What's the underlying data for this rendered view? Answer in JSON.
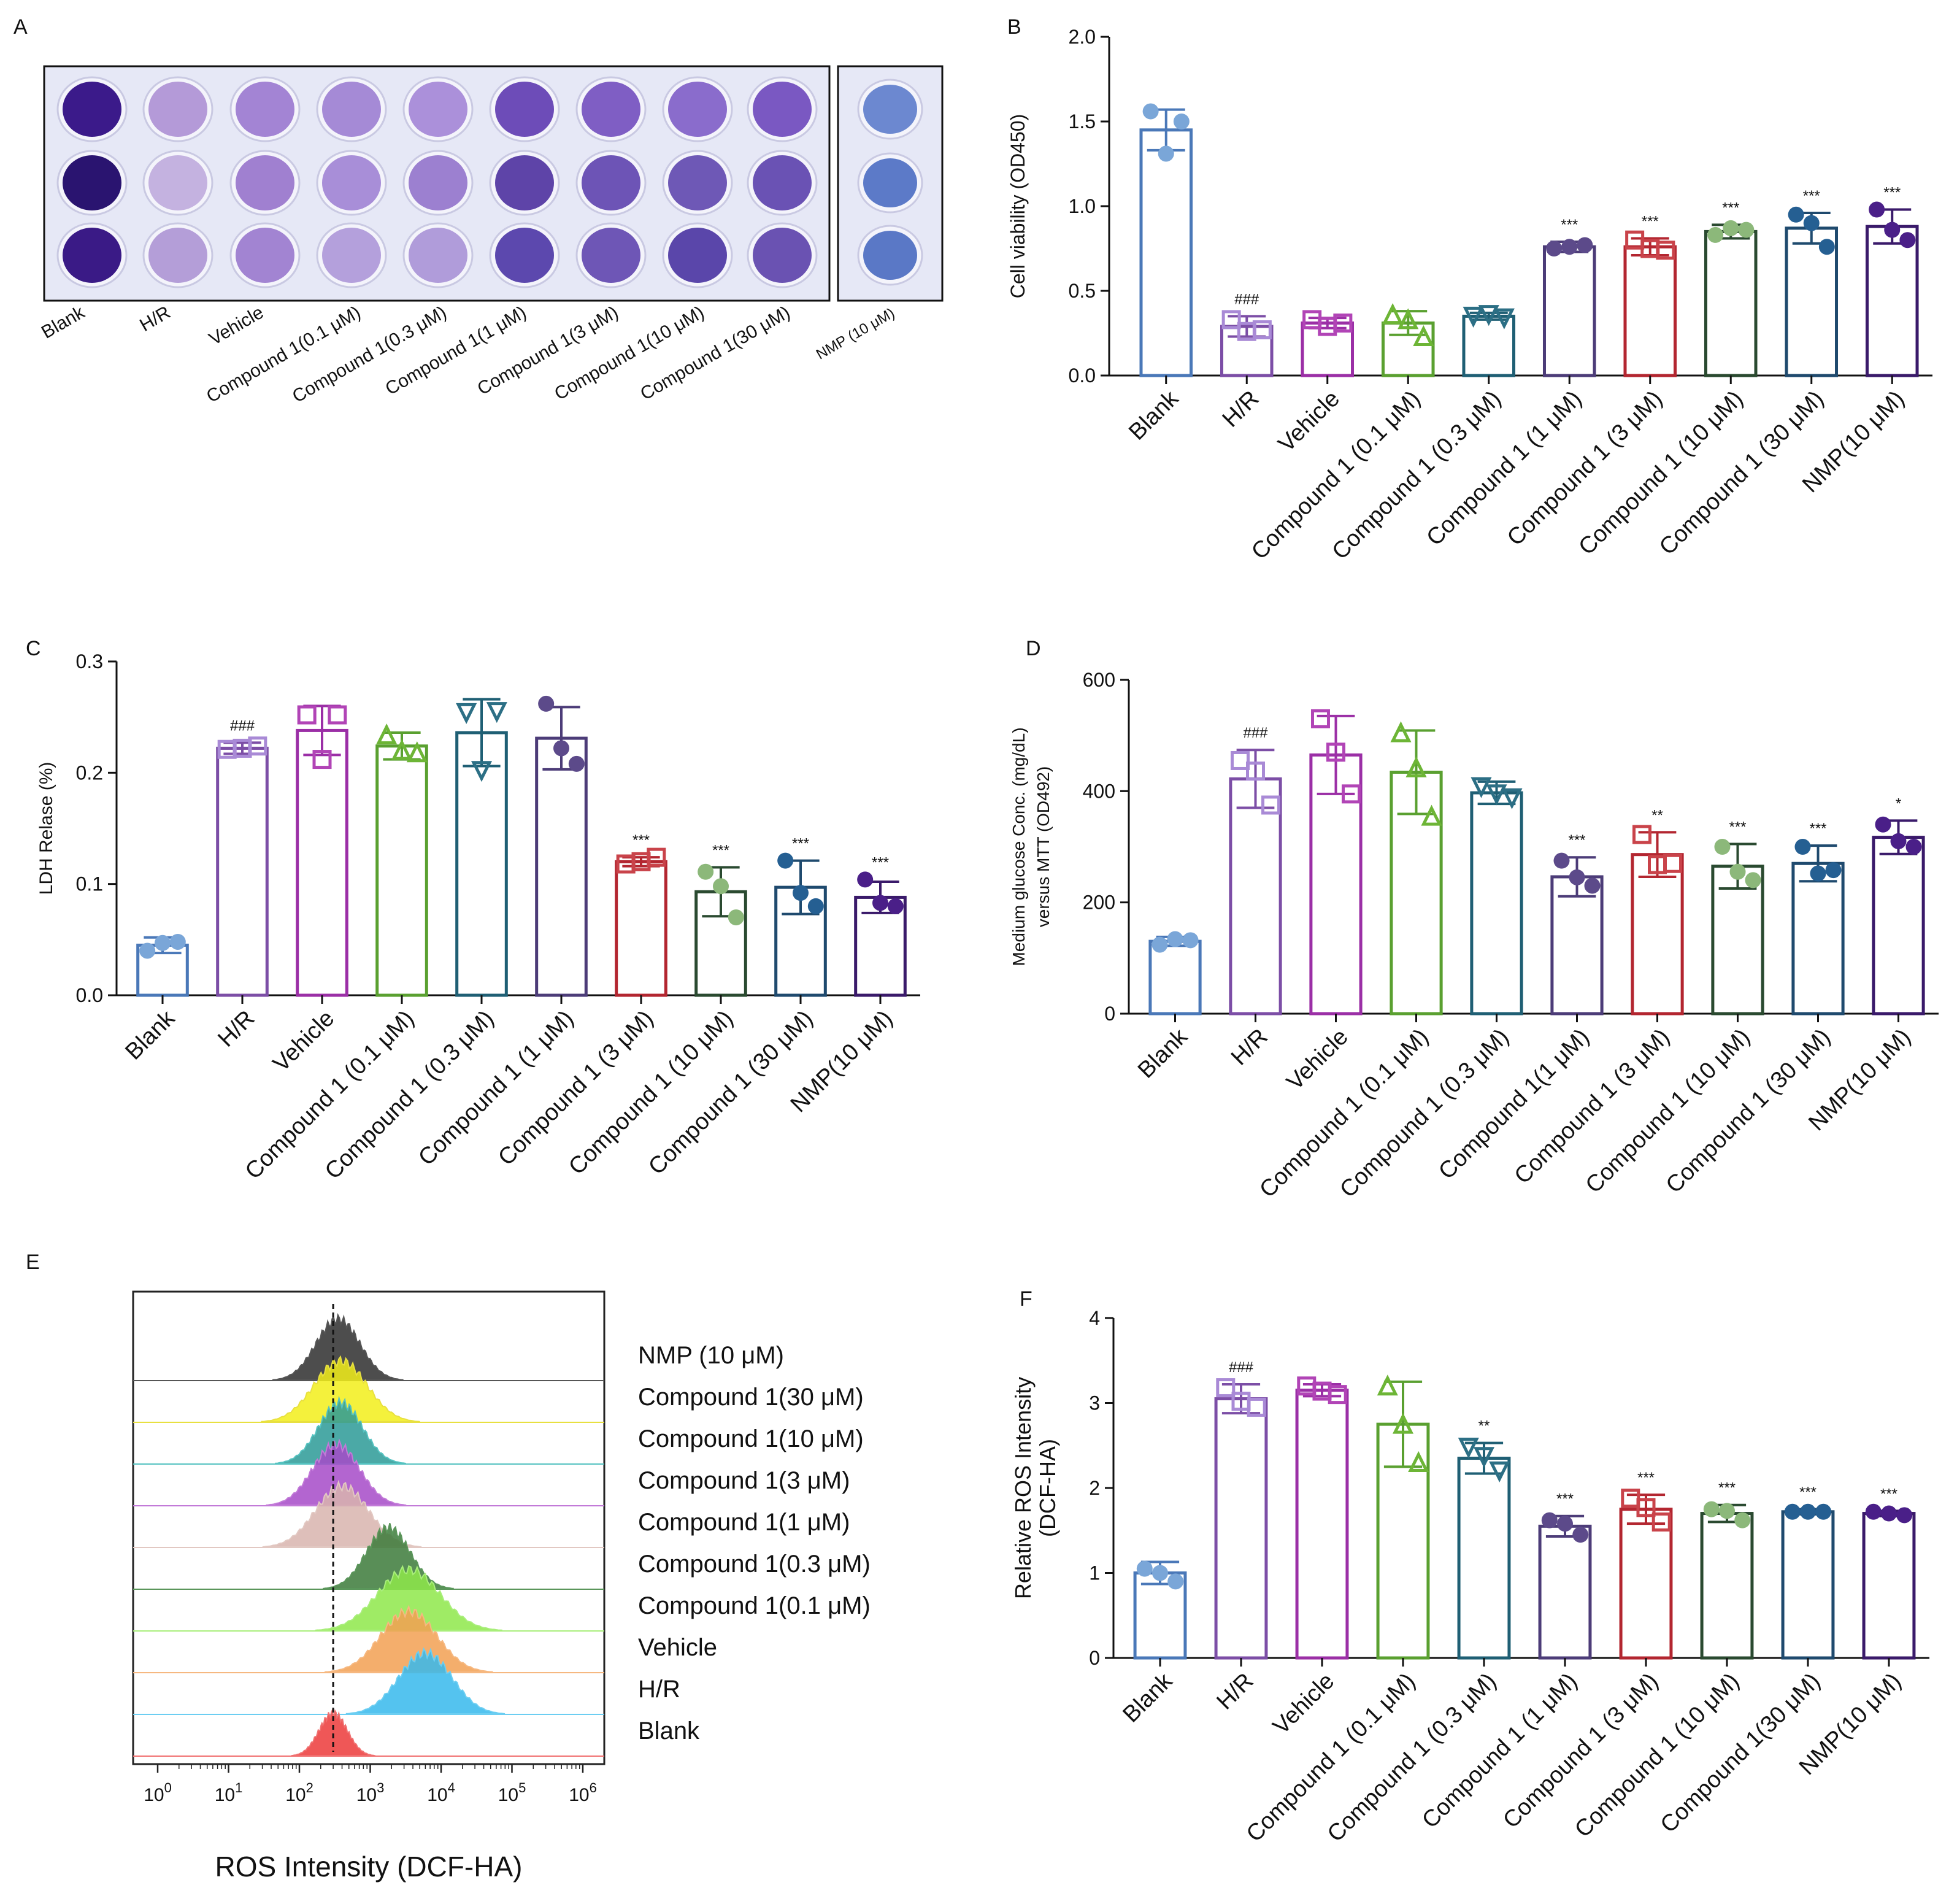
{
  "figure": {
    "panel_letters": [
      "A",
      "B",
      "C",
      "D",
      "E",
      "F"
    ],
    "colors": {
      "Blank": "#4a78b8",
      "H/R": "#7c4ea6",
      "Vehicle": "#9b2fa6",
      "Compound 1 (0.1 μM)": "#5aa030",
      "Compound 1 (0.3 μM)": "#1f5f74",
      "Compound 1 (1 μM)": "#4c3c78",
      "Compound 1 (3 μM)": "#b32630",
      "Compound 1 (10 μM)": "#2a4a30",
      "Compound 1 (30 μM)": "#1f4a6e",
      "NMP(10 μM)": "#3a1a6a"
    },
    "marker_colors": {
      "Blank": "#7aa6d8",
      "H/R": "#a98ad6",
      "Vehicle": "#b144b6",
      "Compound 1 (0.1 μM)": "#6db536",
      "Compound 1 (0.3 μM)": "#2c6f85",
      "Compound 1 (1 μM)": "#5c4a8a",
      "Compound 1 (3 μM)": "#c9434a",
      "Compound 1 (10 μM)": "#8cb87a",
      "Compound 1 (30 μM)": "#255f92",
      "NMP(10 μM)": "#4a1f88"
    }
  },
  "chart_data": [
    {
      "panel": "A",
      "type": "image",
      "description_labels": [
        "Blank",
        "H/R",
        "Vehicle",
        "Compound 1(0.1 μM)",
        "Compound 1(0.3 μM)",
        "Compound 1(1 μM)",
        "Compound 1(3 μM)",
        "Compound 1(10 μM)",
        "Compound 1(30 μM)",
        "NMP (10 μM)"
      ],
      "well_colors": [
        [
          "#3b1a8a",
          "#b49ad8",
          "#a384d4",
          "#a58ad6",
          "#ab90da",
          "#6d4cb8",
          "#7f5ec4",
          "#8a6ccc",
          "#7a58c2",
          "#6c88d0"
        ],
        [
          "#2a1470",
          "#c4b2e0",
          "#a080d0",
          "#a88ed8",
          "#9c80d0",
          "#5e44a8",
          "#6d54b6",
          "#6e58b6",
          "#6a52b4",
          "#5c7ac8"
        ],
        [
          "#3a1a86",
          "#b49ed8",
          "#a284d2",
          "#b4a0dc",
          "#b09cda",
          "#5c48ae",
          "#6e56b6",
          "#5a46aa",
          "#6a52b2",
          "#5a78c6"
        ]
      ]
    },
    {
      "panel": "B",
      "type": "bar",
      "ylabel": "Cell viability (OD450)",
      "ylim": [
        0,
        2.0
      ],
      "yticks": [
        "0.0",
        "0.5",
        "1.0",
        "1.5",
        "2.0"
      ],
      "categories": [
        "Blank",
        "H/R",
        "Vehicle",
        "Compound 1 (0.1 μM)",
        "Compound 1 (0.3 μM)",
        "Compound 1  (1 μM)",
        "Compound 1  (3 μM)",
        "Compound 1 (10 μM)",
        "Compound 1  (30 μM)",
        "NMP(10 μM)"
      ],
      "values": [
        1.45,
        0.29,
        0.31,
        0.31,
        0.35,
        0.76,
        0.76,
        0.85,
        0.87,
        0.88
      ],
      "errors": [
        0.12,
        0.06,
        0.03,
        0.07,
        0.02,
        0.03,
        0.05,
        0.04,
        0.09,
        0.1
      ],
      "points": [
        [
          1.56,
          1.5,
          1.31
        ],
        [
          0.33,
          0.27,
          0.26
        ],
        [
          0.33,
          0.31,
          0.29
        ],
        [
          0.36,
          0.23,
          0.33
        ],
        [
          0.35,
          0.34,
          0.36
        ],
        [
          0.75,
          0.77,
          0.76
        ],
        [
          0.8,
          0.74,
          0.75
        ],
        [
          0.83,
          0.86,
          0.87
        ],
        [
          0.95,
          0.76,
          0.9
        ],
        [
          0.98,
          0.8,
          0.86
        ]
      ],
      "markers": [
        "circle",
        "square",
        "square",
        "triangle",
        "triangle-down",
        "circle",
        "square",
        "circle",
        "circle",
        "circle"
      ],
      "annotations": [
        "",
        "###",
        "",
        "",
        "",
        "***",
        "***",
        "***",
        "***",
        "***"
      ]
    },
    {
      "panel": "C",
      "type": "bar",
      "ylabel": "LDH Relase (%)",
      "ylim": [
        0,
        0.3
      ],
      "yticks": [
        "0.0",
        "0.1",
        "0.2",
        "0.3"
      ],
      "categories": [
        "Blank",
        "H/R",
        "Vehicle",
        "Compound 1 (0.1 μM)",
        "Compound 1 (0.3 μM)",
        "Compound 1 (1 μM)",
        "Compound 1 (3 μM)",
        "Compound 1 (10 μM)",
        "Compound 1 (30 μM)",
        "NMP(10 μM)"
      ],
      "values": [
        0.045,
        0.222,
        0.238,
        0.224,
        0.236,
        0.231,
        0.12,
        0.093,
        0.097,
        0.088
      ],
      "errors": [
        0.007,
        0.005,
        0.022,
        0.012,
        0.03,
        0.028,
        0.004,
        0.022,
        0.024,
        0.014
      ],
      "points": [
        [
          0.04,
          0.048,
          0.047
        ],
        [
          0.221,
          0.224,
          0.222
        ],
        [
          0.252,
          0.252,
          0.212
        ],
        [
          0.234,
          0.218,
          0.22
        ],
        [
          0.254,
          0.255,
          0.202
        ],
        [
          0.262,
          0.208,
          0.222
        ],
        [
          0.118,
          0.124,
          0.12
        ],
        [
          0.111,
          0.07,
          0.098
        ],
        [
          0.121,
          0.08,
          0.092
        ],
        [
          0.104,
          0.08,
          0.083
        ]
      ],
      "markers": [
        "circle",
        "square",
        "square",
        "triangle",
        "triangle-down",
        "circle",
        "square",
        "circle",
        "circle",
        "circle"
      ],
      "annotations": [
        "",
        "###",
        "",
        "",
        "",
        "",
        "***",
        "***",
        "***",
        "***"
      ]
    },
    {
      "panel": "D",
      "type": "bar",
      "ylabel": "Medium glucose Conc. (mg/dL)",
      "ylabel2": "versus MTT (OD492)",
      "ylim": [
        0,
        600
      ],
      "yticks": [
        "0",
        "200",
        "400",
        "600"
      ],
      "categories": [
        "Blank",
        "H/R",
        "Vehicle",
        "Compound 1 (0.1 μM)",
        "Compound 1 (0.3 μM)",
        "Compound 1(1 μM)",
        "Compound 1 (3 μM)",
        "Compound 1 (10 μM)",
        "Compound 1 (30 μM)",
        "NMP(10 μM)"
      ],
      "values": [
        130,
        422,
        465,
        434,
        397,
        246,
        286,
        265,
        270,
        317
      ],
      "errors": [
        8,
        52,
        70,
        75,
        20,
        35,
        40,
        40,
        32,
        30
      ],
      "points": [
        [
          124,
          132,
          134
        ],
        [
          455,
          375,
          436
        ],
        [
          530,
          395,
          470
        ],
        [
          505,
          355,
          442
        ],
        [
          408,
          388,
          395
        ],
        [
          275,
          230,
          245
        ],
        [
          322,
          270,
          268
        ],
        [
          300,
          240,
          255
        ],
        [
          300,
          258,
          252
        ],
        [
          340,
          300,
          310
        ]
      ],
      "markers": [
        "circle",
        "square",
        "square",
        "triangle",
        "triangle-down",
        "circle",
        "square",
        "circle",
        "circle",
        "circle"
      ],
      "annotations": [
        "",
        "###",
        "",
        "",
        "",
        "***",
        "**",
        "***",
        "***",
        "*"
      ]
    },
    {
      "panel": "E",
      "type": "histogram",
      "xlabel": "ROS Intensity (DCF-HA)",
      "xscale": "log",
      "xlim": [
        1,
        1000000
      ],
      "xtick_bases": [
        "10",
        "10",
        "10",
        "10",
        "10",
        "10",
        "10"
      ],
      "xtick_exponents": [
        "0",
        "1",
        "2",
        "3",
        "4",
        "5",
        "6"
      ],
      "reference_line_x": 300,
      "series": [
        {
          "name": "NMP (10 μM)",
          "peak_x": 350,
          "spread": 0.14,
          "fill": "#2e2e2e",
          "line": "#555555"
        },
        {
          "name": "Compound 1(30 μM)",
          "peak_x": 380,
          "spread": 0.17,
          "fill": "#f2ee1a",
          "line": "#e8e040"
        },
        {
          "name": "Compound 1(10 μM)",
          "peak_x": 380,
          "spread": 0.14,
          "fill": "#2c9a96",
          "line": "#54c2c0"
        },
        {
          "name": "Compound 1(3 μM)",
          "peak_x": 330,
          "spread": 0.15,
          "fill": "#a64ac8",
          "line": "#c27ad8"
        },
        {
          "name": "Compound 1(1 μM)",
          "peak_x": 400,
          "spread": 0.17,
          "fill": "#d8b4ae",
          "line": "#e2c8c2"
        },
        {
          "name": "Compound 1(0.3 μM)",
          "peak_x": 1800,
          "spread": 0.14,
          "fill": "#3c7a3a",
          "line": "#5a965a"
        },
        {
          "name": "Compound 1(0.1 μM)",
          "peak_x": 3500,
          "spread": 0.2,
          "fill": "#8ee84a",
          "line": "#a8ee7a"
        },
        {
          "name": "Vehicle",
          "peak_x": 3500,
          "spread": 0.18,
          "fill": "#f2a052",
          "line": "#f6b880"
        },
        {
          "name": "H/R",
          "peak_x": 6000,
          "spread": 0.17,
          "fill": "#36b8ec",
          "line": "#6ccef2"
        },
        {
          "name": "Blank",
          "peak_x": 300,
          "spread": 0.09,
          "fill": "#ec3a3a",
          "line": "#f07070"
        }
      ]
    },
    {
      "panel": "F",
      "type": "bar",
      "ylabel": "Relative ROS Intensity",
      "ylabel2": "(DCF-HA)",
      "ylim": [
        0,
        4
      ],
      "yticks": [
        "0",
        "1",
        "2",
        "3",
        "4"
      ],
      "categories": [
        "Blank",
        "H/R",
        "Vehicle",
        "Compound 1 (0.1 μM)",
        "Compound 1 (0.3 μM)",
        "Compound 1 (1 μM)",
        "Compound 1 (3 μM)",
        "Compound 1 (10 μM)",
        "Compound 1(30 μM)",
        "NMP(10 μM)"
      ],
      "values": [
        1.0,
        3.05,
        3.15,
        2.75,
        2.35,
        1.55,
        1.75,
        1.7,
        1.72,
        1.7
      ],
      "errors": [
        0.13,
        0.17,
        0.07,
        0.5,
        0.18,
        0.12,
        0.17,
        0.1,
        0.03,
        0.03
      ],
      "points": [
        [
          1.05,
          0.9,
          1.0
        ],
        [
          3.18,
          2.95,
          3.02
        ],
        [
          3.2,
          3.1,
          3.14
        ],
        [
          3.2,
          2.3,
          2.75
        ],
        [
          2.48,
          2.2,
          2.37
        ],
        [
          1.62,
          1.45,
          1.58
        ],
        [
          1.88,
          1.6,
          1.77
        ],
        [
          1.75,
          1.62,
          1.73
        ],
        [
          1.72,
          1.72,
          1.72
        ],
        [
          1.72,
          1.68,
          1.7
        ]
      ],
      "markers": [
        "circle",
        "square",
        "square",
        "triangle",
        "triangle-down",
        "circle",
        "square",
        "circle",
        "circle",
        "circle"
      ],
      "annotations": [
        "",
        "###",
        "",
        "",
        "**",
        "***",
        "***",
        "***",
        "***",
        "***"
      ]
    }
  ]
}
